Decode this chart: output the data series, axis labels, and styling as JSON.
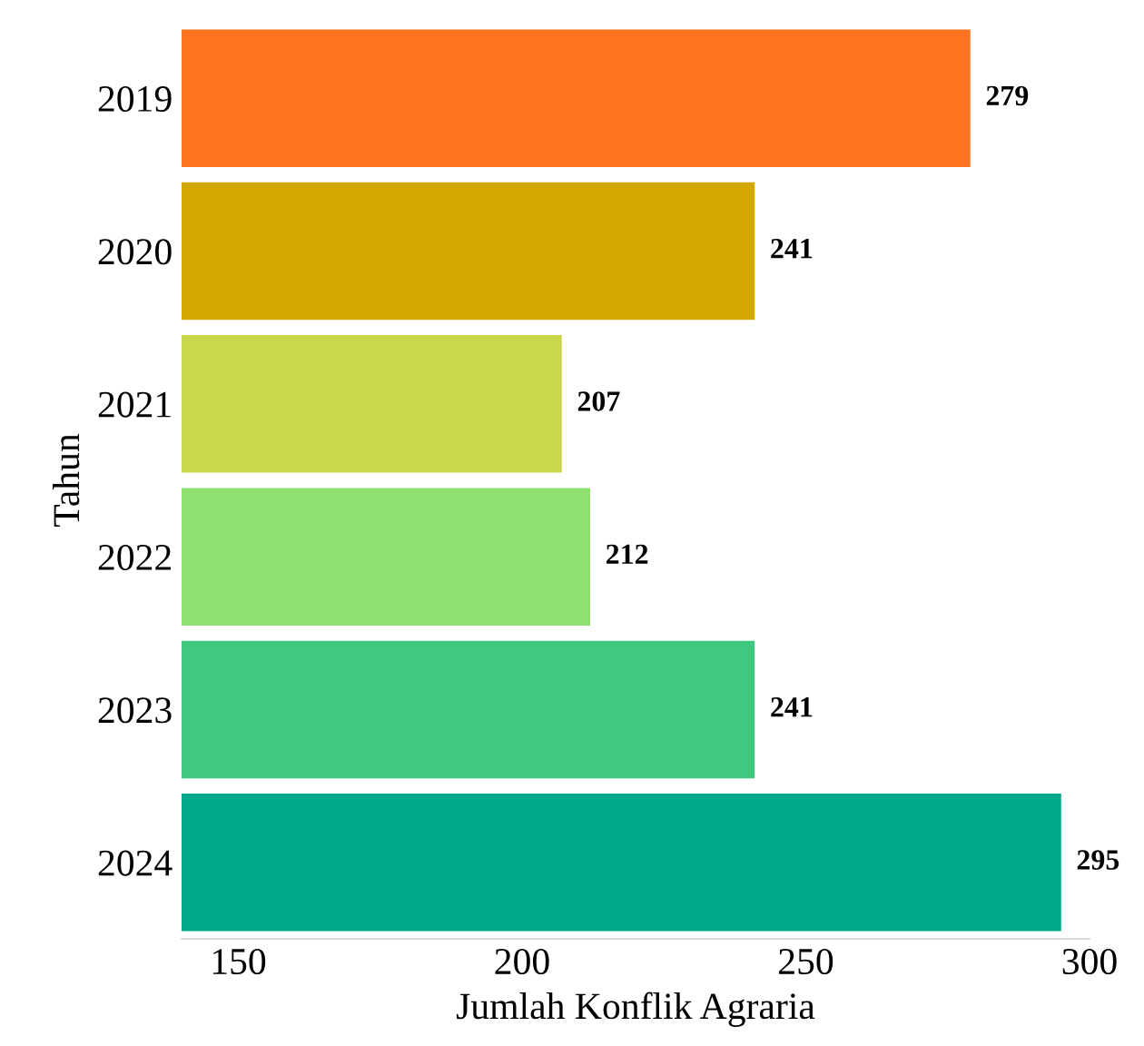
{
  "chart_data": {
    "type": "bar",
    "orientation": "horizontal",
    "xlabel": "Jumlah Konflik Agraria",
    "ylabel": "Tahun",
    "categories": [
      "2019",
      "2020",
      "2021",
      "2022",
      "2023",
      "2024"
    ],
    "values": [
      279,
      241,
      207,
      212,
      241,
      295
    ],
    "colors": [
      "#ff7420",
      "#d4a800",
      "#c8d84a",
      "#90e070",
      "#40c880",
      "#00a88a"
    ],
    "xlim": [
      140,
      300
    ],
    "xticks": [
      150,
      200,
      250,
      300
    ],
    "data_labels": true,
    "grid": false,
    "legend": false
  }
}
